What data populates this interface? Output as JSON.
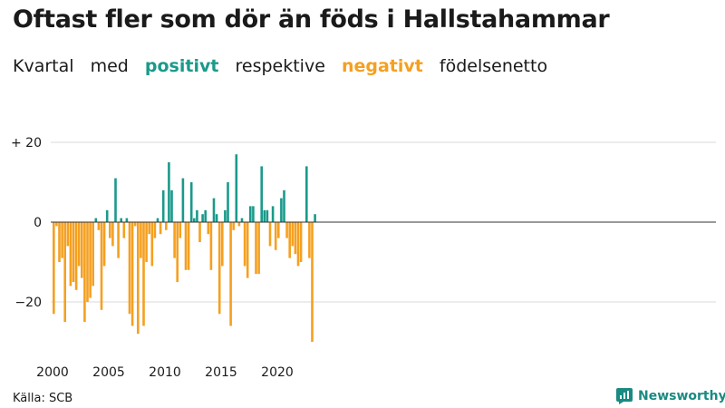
{
  "title": "Oftast fler som dör än föds i Hallstahammar",
  "subtitle": {
    "w1": "Kvartal",
    "w2": "med",
    "positive": "positivt",
    "w3": "respektive",
    "negative": "negativt",
    "w4": "födelsenetto"
  },
  "source": "Källa: SCB",
  "brand": "Newsworthy",
  "colors": {
    "positive": "#1a9a8a",
    "negative": "#f5a020",
    "grid": "#d8d8d8",
    "text": "#1a1a1a"
  },
  "chart_data": {
    "type": "bar",
    "title": "Oftast fler som dör än föds i Hallstahammar",
    "xlabel": "",
    "ylabel": "",
    "ylim": [
      -30,
      20
    ],
    "y_ticks": [
      20,
      0,
      -20
    ],
    "y_tick_labels": [
      "+ 20",
      "0",
      "−20"
    ],
    "x_start_year": 2000,
    "x_ticks": [
      2000,
      2005,
      2010,
      2015,
      2020
    ],
    "x_tick_labels": [
      "2000",
      "2005",
      "2010",
      "2015",
      "2020"
    ],
    "series": [
      {
        "name": "Födelsenetto per kvartal",
        "values": [
          -23,
          -1,
          -10,
          -9,
          -25,
          -6,
          -16,
          -15,
          -17,
          -11,
          -14,
          -25,
          -20,
          -19,
          -16,
          1,
          -2,
          -22,
          -11,
          3,
          -4,
          -6,
          11,
          -9,
          1,
          -4,
          1,
          -23,
          -26,
          -1,
          -28,
          -9,
          -26,
          -10,
          -3,
          -11,
          -4,
          1,
          -3,
          8,
          -2,
          15,
          8,
          -9,
          -15,
          -4,
          11,
          -12,
          -12,
          10,
          1,
          3,
          -5,
          2,
          3,
          -3,
          -12,
          6,
          2,
          -23,
          -11,
          3,
          10,
          -26,
          -2,
          17,
          -1,
          1,
          -11,
          -14,
          4,
          4,
          -13,
          -13,
          14,
          3,
          3,
          -6,
          4,
          -7,
          -4,
          6,
          8,
          -4,
          -9,
          -6,
          -8,
          -11,
          -10,
          0,
          14,
          -9,
          -30,
          2
        ]
      }
    ]
  }
}
